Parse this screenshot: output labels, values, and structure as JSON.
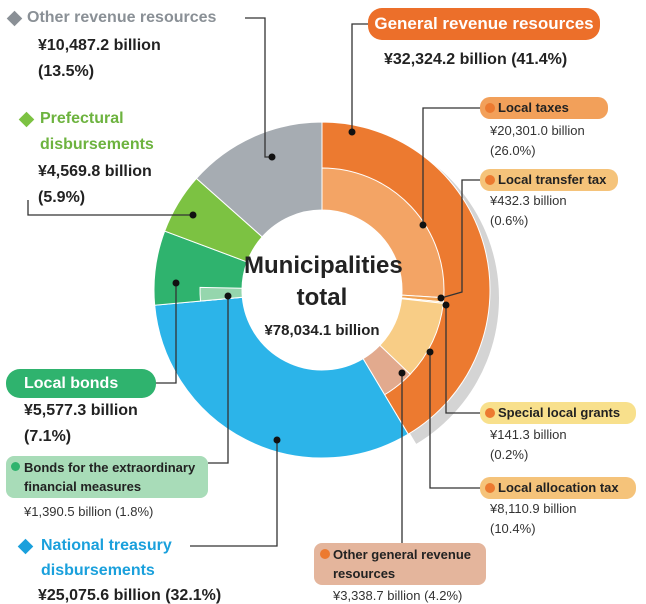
{
  "chart_data": {
    "type": "donut",
    "title": "Municipalities total",
    "total": 78034.1,
    "total_label": "¥78,034.1 billion",
    "series": [
      {
        "name": "General revenue resources",
        "color": "#ec7a30",
        "value": 32324.2,
        "value_label": "¥32,324.2 billion",
        "percent": 41.4,
        "percent_label": "(41.4%)",
        "children": [
          {
            "name": "Local taxes",
            "color": "#f3a465",
            "value": 20301.0,
            "value_label": "¥20,301.0 billion",
            "percent": 26.0,
            "percent_label": "(26.0%)"
          },
          {
            "name": "Local transfer tax",
            "color": "#f0a050",
            "value": 432.3,
            "value_label": "¥432.3 billion",
            "percent": 0.6,
            "percent_label": "(0.6%)"
          },
          {
            "name": "Special local grants",
            "color": "#f7c670",
            "value": 141.3,
            "value_label": "¥141.3 billion",
            "percent": 0.2,
            "percent_label": "(0.2%)"
          },
          {
            "name": "Local allocation tax",
            "color": "#f8cd86",
            "value": 8110.9,
            "value_label": "¥8,110.9 billion",
            "percent": 10.4,
            "percent_label": "(10.4%)"
          },
          {
            "name": "Other general revenue resources",
            "color": "#e2aa8e",
            "value": 3338.7,
            "value_label": "¥3,338.7 billion",
            "percent": 4.2,
            "percent_label": "(4.2%)"
          }
        ]
      },
      {
        "name": "National treasury disbursements",
        "color": "#2cb4e9",
        "value": 25075.6,
        "value_label": "¥25,075.6 billion",
        "percent": 32.1,
        "percent_label": "(32.1%)",
        "children": []
      },
      {
        "name": "Local bonds",
        "color": "#2fb36e",
        "value": 5577.3,
        "value_label": "¥5,577.3 billion",
        "percent": 7.1,
        "percent_label": "(7.1%)",
        "children": [
          {
            "name": "Bonds for the extraordinary financial measures",
            "color": "#95d6ad",
            "value": 1390.5,
            "value_label": "¥1,390.5 billion",
            "percent": 1.8,
            "percent_label": "(1.8%)"
          }
        ]
      },
      {
        "name": "Prefectural disbursements",
        "color": "#7cc242",
        "value": 4569.8,
        "value_label": "¥4,569.8 billion",
        "percent": 5.9,
        "percent_label": "(5.9%)",
        "children": []
      },
      {
        "name": "Other revenue resources",
        "color": "#a6acb2",
        "value": 10487.2,
        "value_label": "¥10,487.2 billion",
        "percent": 13.5,
        "percent_label": "(13.5%)",
        "children": []
      }
    ]
  }
}
